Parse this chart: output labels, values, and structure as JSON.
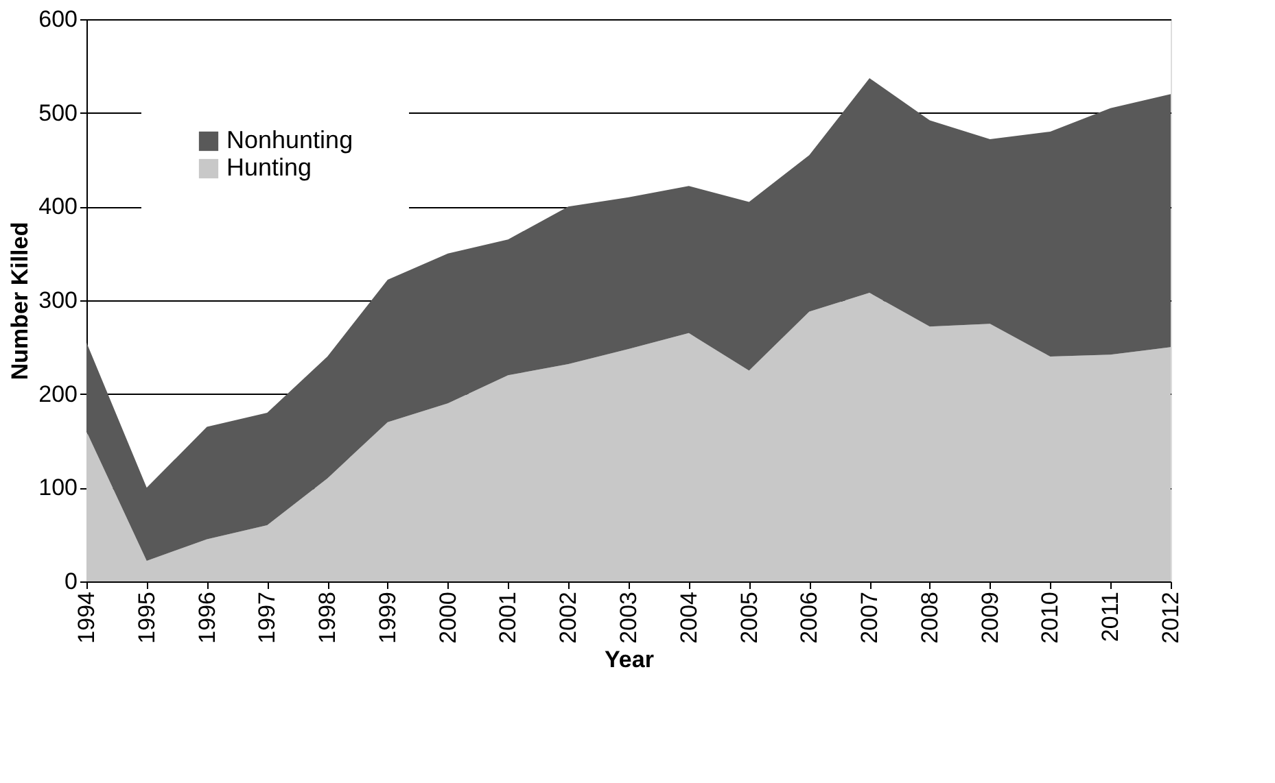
{
  "chart_data": {
    "type": "area",
    "stacked": true,
    "xlabel": "Year",
    "ylabel": "Number Killed",
    "categories": [
      "1994",
      "1995",
      "1996",
      "1997",
      "1998",
      "1999",
      "2000",
      "2001",
      "2002",
      "2003",
      "2004",
      "2005",
      "2006",
      "2007",
      "2008",
      "2009",
      "2010",
      "2011",
      "2012"
    ],
    "series": [
      {
        "name": "Hunting",
        "color": "#c8c8c8",
        "values": [
          160,
          22,
          45,
          60,
          110,
          170,
          190,
          220,
          232,
          248,
          265,
          225,
          288,
          308,
          272,
          275,
          240,
          242,
          250
        ]
      },
      {
        "name": "Nonhunting",
        "color": "#595959",
        "values": [
          95,
          78,
          120,
          120,
          130,
          152,
          160,
          145,
          168,
          162,
          157,
          180,
          167,
          229,
          220,
          197,
          240,
          263,
          270
        ]
      }
    ],
    "ylim": [
      0,
      600
    ],
    "yticks": [
      0,
      100,
      200,
      300,
      400,
      500,
      600
    ],
    "grid": "y",
    "legend": "top left"
  }
}
